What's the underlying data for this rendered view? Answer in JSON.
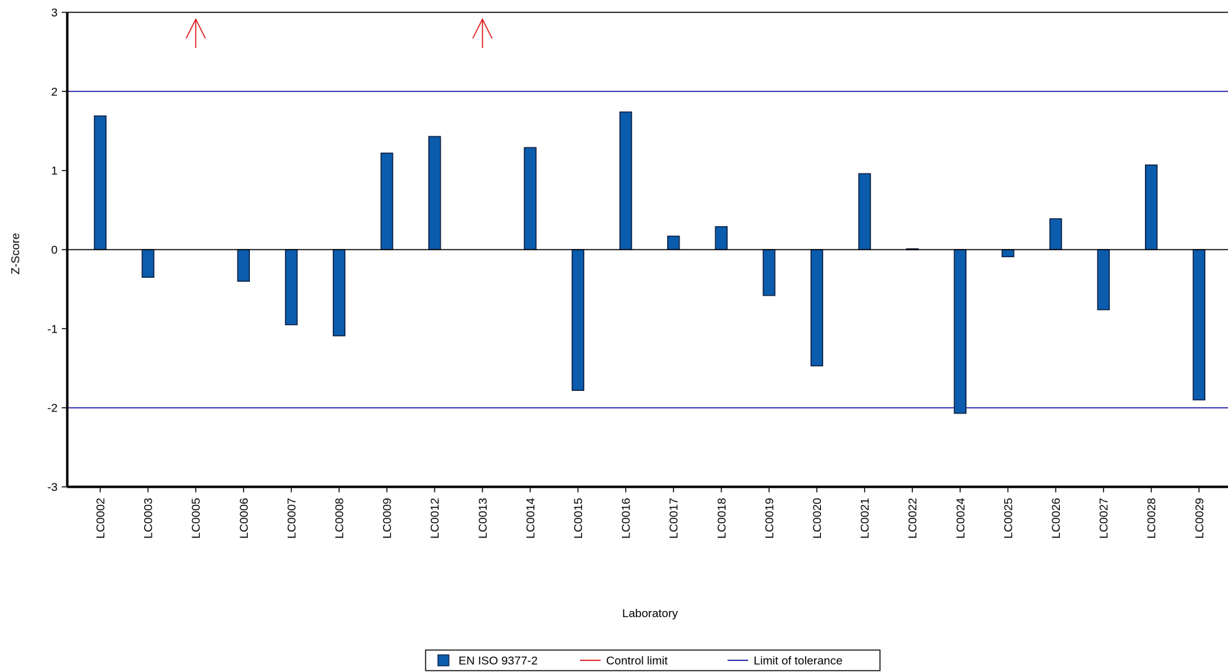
{
  "chart_data": {
    "type": "bar",
    "title": "",
    "xlabel": "Laboratory",
    "ylabel": "Z-Score",
    "ylim": [
      -3,
      3
    ],
    "yticks": [
      3,
      2,
      1,
      0,
      -1,
      -2,
      -3
    ],
    "categories": [
      "LC0002",
      "LC0003",
      "LC0005",
      "LC0006",
      "LC0007",
      "LC0008",
      "LC0009",
      "LC0012",
      "LC0013",
      "LC0014",
      "LC0015",
      "LC0016",
      "LC0017",
      "LC0018",
      "LC0019",
      "LC0020",
      "LC0021",
      "LC0022",
      "LC0024",
      "LC0025",
      "LC0026",
      "LC0027",
      "LC0028",
      "LC0029"
    ],
    "series": [
      {
        "name": "EN ISO 9377-2",
        "color": "#0b5cad",
        "values": [
          1.69,
          -0.35,
          null,
          -0.4,
          -0.95,
          -1.09,
          1.22,
          1.43,
          null,
          1.29,
          -1.78,
          1.74,
          0.17,
          0.29,
          -0.58,
          -1.47,
          0.96,
          0.01,
          -2.07,
          -0.09,
          0.39,
          -0.76,
          1.07,
          -1.9
        ]
      }
    ],
    "out_of_range_markers": [
      {
        "category": "LC0005",
        "direction": "up"
      },
      {
        "category": "LC0013",
        "direction": "up"
      }
    ],
    "reference_lines": [
      {
        "name": "Limit of tolerance",
        "values": [
          2,
          -2
        ],
        "color": "#1f1fa8"
      }
    ],
    "legend": {
      "placement": "bottom-center",
      "entries": [
        {
          "label": "EN ISO 9377-2",
          "kind": "box",
          "color": "#0b5cad"
        },
        {
          "label": "Control limit",
          "kind": "line",
          "color": "#e02020"
        },
        {
          "label": "Limit of tolerance",
          "kind": "line",
          "color": "#1f1fa8"
        }
      ]
    },
    "grid": false
  }
}
